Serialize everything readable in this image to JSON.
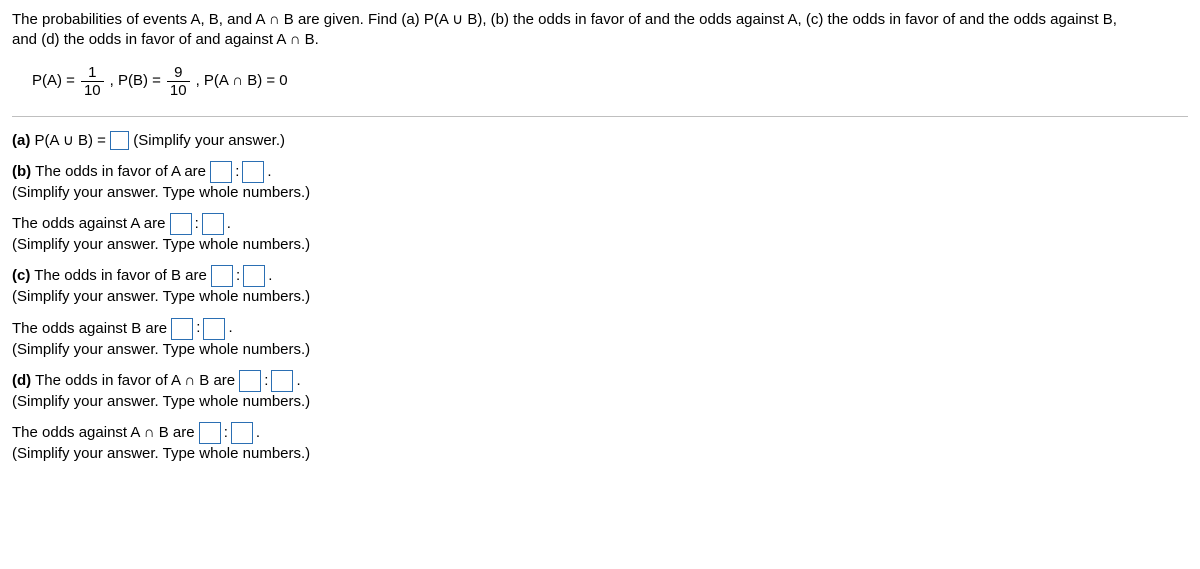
{
  "header": {
    "line1": "The probabilities of events A, B, and A ∩ B are given. Find (a) P(A ∪ B), (b) the odds in favor of and the odds against A, (c) the odds in favor of and the odds against B,",
    "line2": "and (d) the odds in favor of and against A ∩ B."
  },
  "given": {
    "pA_label": "P(A) =",
    "pA_num": "1",
    "pA_den": "10",
    "pB_label": ", P(B) =",
    "pB_num": "9",
    "pB_den": "10",
    "pAnB_label": ", P(A ∩ B) = 0"
  },
  "a": {
    "label": "(a)",
    "text": "P(A ∪ B) =",
    "hint": "(Simplify your answer.)"
  },
  "b": {
    "label": "(b)",
    "favor_text": "The odds in favor of A are",
    "favor_hint": "(Simplify your answer. Type whole numbers.)",
    "against_text": "The odds against A are",
    "against_hint": "(Simplify your answer. Type whole numbers.)"
  },
  "c": {
    "label": "(c)",
    "favor_text": "The odds in favor of B are",
    "favor_hint": "(Simplify your answer. Type whole numbers.)",
    "against_text": "The odds against B are",
    "against_hint": "(Simplify your answer. Type whole numbers.)"
  },
  "d": {
    "label": "(d)",
    "favor_text": "The odds in favor of A ∩ B are",
    "favor_hint": "(Simplify your answer. Type whole numbers.)",
    "against_text": "The odds against A ∩ B are",
    "against_hint": "(Simplify your answer. Type whole numbers.)"
  },
  "sym": {
    "colon": ":",
    "period": "."
  }
}
